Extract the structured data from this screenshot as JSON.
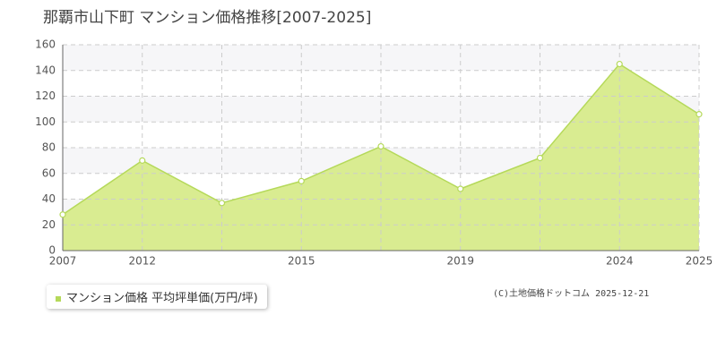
{
  "chart_data": {
    "type": "area",
    "title": "那覇市山下町 マンション価格推移[2007-2025]",
    "categories": [
      "2007",
      "2012",
      null,
      "2015",
      null,
      "2019",
      null,
      "2024",
      "2025"
    ],
    "series": [
      {
        "name": "マンション価格 平均坪単価(万円/坪)",
        "color": "#b5d95a",
        "fill": "#d9ec91",
        "values": [
          28,
          70,
          37,
          54,
          81,
          48,
          72,
          145,
          106
        ]
      }
    ],
    "ylim": [
      0,
      160
    ],
    "yticks": [
      0,
      20,
      40,
      60,
      80,
      100,
      120,
      140,
      160
    ],
    "grid": true,
    "source": "(C)土地価格ドットコム 2025-12-21"
  }
}
